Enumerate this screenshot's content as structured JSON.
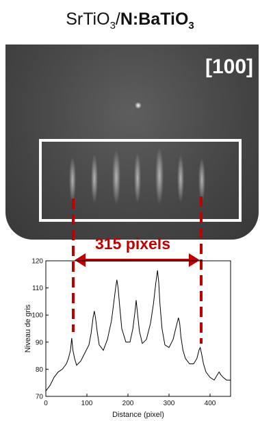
{
  "title": {
    "substrate": "SrTiO",
    "substrate_sub": "3",
    "separator": "/",
    "film": "N:BaTiO",
    "film_sub": "3"
  },
  "rheed": {
    "direction_label": "[100]"
  },
  "measurement": {
    "label": "315 pixels"
  },
  "colors": {
    "annotation": "#c00000",
    "highlight_box": "#ffffff",
    "curve": "#000000"
  },
  "chart_data": {
    "type": "line",
    "xlabel": "Distance (pixel)",
    "ylabel": "Niveau de gris",
    "xlim": [
      0,
      450
    ],
    "ylim": [
      70,
      120
    ],
    "x_ticks": [
      0,
      100,
      200,
      300,
      400
    ],
    "y_ticks": [
      70,
      80,
      90,
      100,
      110,
      120
    ],
    "grid": false,
    "series": [
      {
        "x": [
          0,
          10,
          20,
          30,
          40,
          50,
          55,
          60,
          63,
          66,
          70,
          75,
          85,
          95,
          105,
          110,
          115,
          118,
          121,
          125,
          130,
          140,
          150,
          160,
          165,
          170,
          173,
          176,
          180,
          185,
          195,
          205,
          212,
          217,
          220,
          223,
          228,
          235,
          245,
          255,
          262,
          268,
          272,
          275,
          278,
          283,
          290,
          300,
          310,
          318,
          323,
          326,
          329,
          334,
          340,
          350,
          360,
          368,
          373,
          376,
          379,
          384,
          390,
          400,
          410,
          418,
          422,
          426,
          432,
          440,
          450
        ],
        "y": [
          72,
          74,
          77,
          79,
          80,
          82,
          84,
          87,
          91.5,
          87,
          84,
          81.5,
          83,
          86,
          89,
          93,
          99,
          101.5,
          99,
          94,
          89,
          87,
          91,
          98,
          104,
          110,
          113,
          110,
          103,
          95,
          90,
          90,
          95,
          101,
          105.5,
          101,
          94,
          89.5,
          91,
          97,
          104,
          112,
          116.5,
          112,
          104,
          95,
          89,
          88,
          91,
          96,
          99,
          97,
          92,
          87,
          84,
          82,
          82,
          84,
          87,
          88,
          86,
          82,
          79,
          77,
          76,
          78,
          79,
          78,
          77,
          76,
          76
        ]
      }
    ]
  }
}
